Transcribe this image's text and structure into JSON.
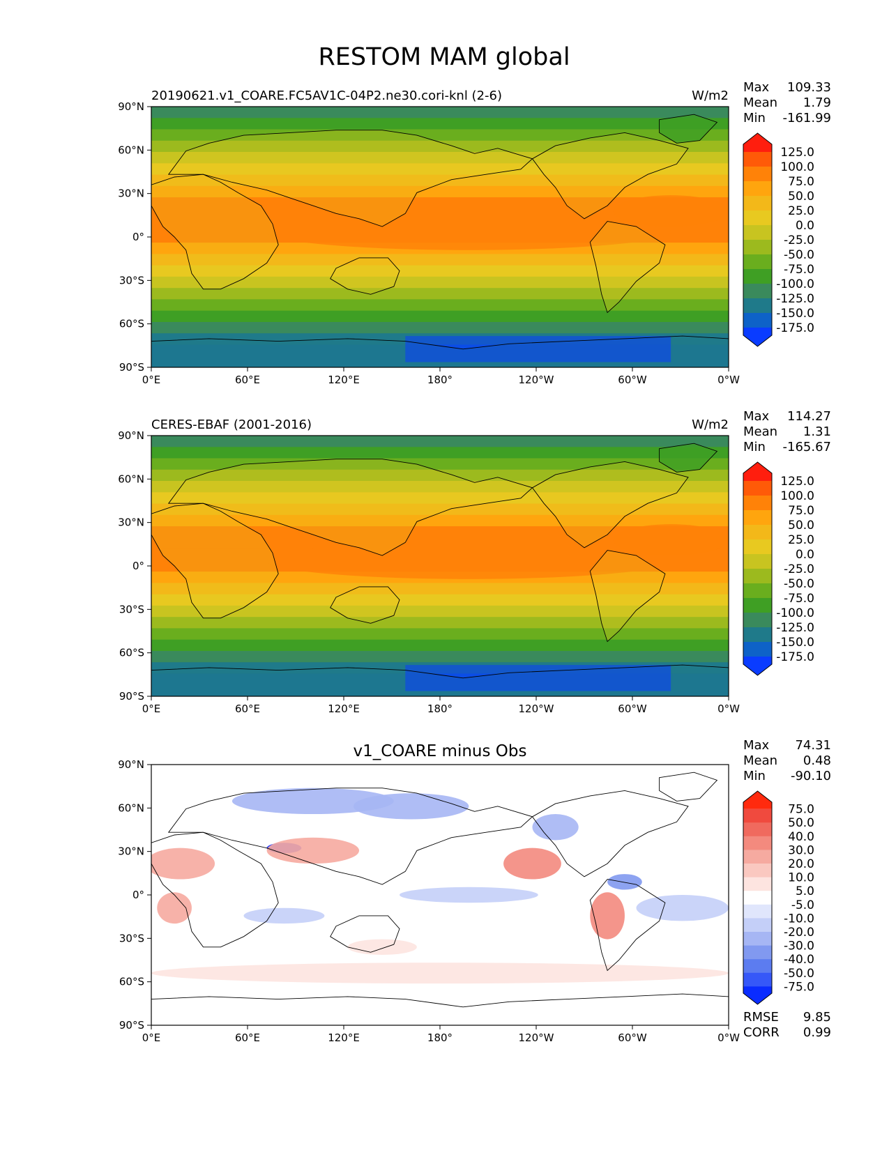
{
  "title": "RESTOM MAM global",
  "x_ticks": [
    "0°E",
    "60°E",
    "120°E",
    "180°",
    "120°W",
    "60°W",
    "0°W"
  ],
  "y_ticks": [
    "90°N",
    "60°N",
    "30°N",
    "0°",
    "30°S",
    "60°S",
    "90°S"
  ],
  "panels": [
    {
      "id": "model",
      "left_title": "20190621.v1_COARE.FC5AV1C-04P2.ne30.cori-knl (2-6)",
      "center_title": "",
      "units": "W/m2",
      "stats": [
        {
          "label": "Max",
          "value": "109.33"
        },
        {
          "label": "Mean",
          "value": "1.79"
        },
        {
          "label": "Min",
          "value": "-161.99"
        }
      ],
      "colorbar": {
        "labels": [
          "125.0",
          "100.0",
          "75.0",
          "50.0",
          "25.0",
          "0.0",
          "-25.0",
          "-50.0",
          "-75.0",
          "-100.0",
          "-125.0",
          "-150.0",
          "-175.0"
        ],
        "colors": [
          "#ff1e0e",
          "#ff5a08",
          "#ff8208",
          "#ffa50e",
          "#f3b819",
          "#e8c920",
          "#c8c420",
          "#9cba1e",
          "#6aae1e",
          "#3f9f24",
          "#3a8a5c",
          "#1f7a8a",
          "#0e62c8",
          "#0a3cff"
        ]
      },
      "footer_stats": []
    },
    {
      "id": "obs",
      "left_title": "CERES-EBAF (2001-2016)",
      "center_title": "",
      "units": "W/m2",
      "stats": [
        {
          "label": "Max",
          "value": "114.27"
        },
        {
          "label": "Mean",
          "value": "1.31"
        },
        {
          "label": "Min",
          "value": "-165.67"
        }
      ],
      "colorbar": {
        "labels": [
          "125.0",
          "100.0",
          "75.0",
          "50.0",
          "25.0",
          "0.0",
          "-25.0",
          "-50.0",
          "-75.0",
          "-100.0",
          "-125.0",
          "-150.0",
          "-175.0"
        ],
        "colors": [
          "#ff1e0e",
          "#ff5a08",
          "#ff8208",
          "#ffa50e",
          "#f3b819",
          "#e8c920",
          "#c8c420",
          "#9cba1e",
          "#6aae1e",
          "#3f9f24",
          "#3a8a5c",
          "#1f7a8a",
          "#0e62c8",
          "#0a3cff"
        ]
      },
      "footer_stats": []
    },
    {
      "id": "diff",
      "left_title": "",
      "center_title": "v1_COARE minus Obs",
      "units": "",
      "stats": [
        {
          "label": "Max",
          "value": "74.31"
        },
        {
          "label": "Mean",
          "value": "0.48"
        },
        {
          "label": "Min",
          "value": "-90.10"
        }
      ],
      "colorbar": {
        "labels": [
          "75.0",
          "50.0",
          "40.0",
          "30.0",
          "20.0",
          "10.0",
          "5.0",
          "-5.0",
          "-10.0",
          "-20.0",
          "-30.0",
          "-40.0",
          "-50.0",
          "-75.0"
        ],
        "colors": [
          "#ff2a0e",
          "#f04a3e",
          "#f06a5e",
          "#f38a7e",
          "#f6aaa0",
          "#fac8c0",
          "#fde4e0",
          "#ffffff",
          "#e0e6fc",
          "#c4cff8",
          "#a6b6f4",
          "#8199f0",
          "#5c7cf0",
          "#3658f8",
          "#0a2cff"
        ]
      },
      "footer_stats": [
        {
          "label": "RMSE",
          "value": "9.85"
        },
        {
          "label": "CORR",
          "value": "0.99"
        }
      ]
    }
  ]
}
